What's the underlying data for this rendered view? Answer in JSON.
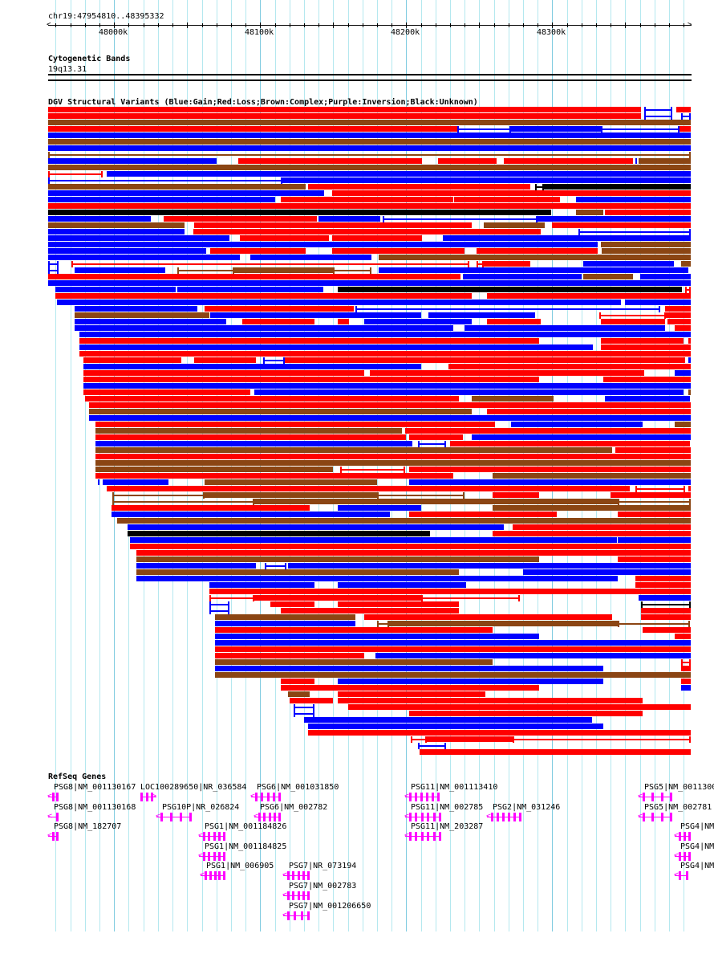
{
  "ruler": {
    "title": "chr19:47954810..48395332",
    "start_kb": 47954.81,
    "end_kb": 48395.332,
    "tick_labels": [
      {
        "kb": 48000,
        "label": "48000k"
      },
      {
        "kb": 48100,
        "label": "48100k"
      },
      {
        "kb": 48200,
        "label": "48200k"
      },
      {
        "kb": 48300,
        "label": "48300k"
      }
    ]
  },
  "cytoband": {
    "title": "Cytogenetic Bands",
    "band": "19q13.31"
  },
  "dgv": {
    "title": "DGV Structural Variants (Blue:Gain;Red:Loss;Brown:Complex;Purple:Inversion;Black:Unknown)",
    "colors": {
      "G": "#0000ff",
      "L": "#ff0000",
      "C": "#8b4513",
      "I": "#800080",
      "U": "#000000"
    },
    "legend_codes": {
      "G": "Gain",
      "L": "Loss",
      "C": "Complex",
      "I": "Inversion",
      "U": "Unknown",
      "t": "thin/linked segment"
    },
    "rows": [
      [
        "L 47955 48361",
        "tG 48363 48382",
        "L 48385 48395"
      ],
      [
        "L 47955 48361",
        "tG 48363 48382",
        "tG 48388 48395"
      ],
      [
        "C 47955 48395"
      ],
      [
        "L 47955 48235",
        "tG 48235 48272",
        "G 48272 48333",
        "tG 48333 48387",
        "L 48387 48395"
      ],
      [
        "G 47955 48395"
      ],
      [
        "C 47955 48395"
      ],
      [
        "G 47955 48395"
      ],
      [
        "tC 47955 48395"
      ],
      [
        "G 47955 48070",
        "L 48085 48211",
        "L 48222 48262",
        "L 48267 48355",
        "G 48357 48358",
        "C 48359 48395"
      ],
      [
        "C 47955 48395"
      ],
      [
        "tL 47955 47992",
        "G 47995 48395"
      ],
      [
        "tG 47955 48115",
        "G 48115 48395"
      ],
      [
        "C 47955 48131",
        "L 48133 48285",
        "tU 48288 48294",
        "U 48294 48395"
      ],
      [
        "G 47955 48144",
        "L 48149 48395"
      ],
      [
        "G 47955 48110",
        "L 48114 48232",
        "L 48233 48305",
        "G 48316 48395"
      ],
      [
        "L 47955 48395"
      ],
      [
        "U 47955 48299",
        "C 48316 48335",
        "L 48336 48395"
      ],
      [
        "G 47955 48025",
        "L 48034 48139",
        "G 48140 48182",
        "tG 48184 48290",
        "G 48290 48395"
      ],
      [
        "C 47955 48048",
        "L 48055 48245",
        "C 48253 48295",
        "L 48300 48395"
      ],
      [
        "G 47955 48048",
        "L 48054 48292",
        "tG 48318 48395"
      ],
      [
        "G 47955 48079",
        "L 48086 48147",
        "L 48149 48211",
        "G 48225 48395"
      ],
      [
        "G 47955 48331",
        "C 48333 48395"
      ],
      [
        "G 47955 48063",
        "L 48066 48131",
        "L 48149 48240",
        "L 48248 48331",
        "C 48334 48395"
      ],
      [
        "G 47955 48086",
        "G 48093 48176",
        "C 48181 48395"
      ],
      [
        "tG 47955 47962",
        "tL 47971 48243",
        "tL 48248 48253",
        "L 48253 48285",
        "G 48321 48383",
        "C 48388 48395"
      ],
      [
        "tG 47955 47962",
        "G 47973 48035",
        "tC 48043 48082",
        "C 48082 48150",
        "tC 48150 48176",
        "G 48181 48393"
      ],
      [
        "L 47955 48237",
        "G 48239 48320",
        "C 48321 48355",
        "G 48360 48395"
      ],
      [
        "G 47955 48395"
      ],
      [
        "G 47960 48042",
        "G 48043 48143",
        "U 48153 48389",
        "tL 48391 48395"
      ],
      [
        "L 47960 48245",
        "L 48255 48395"
      ],
      [
        "G 47961 48347",
        "G 48350 48395"
      ],
      [
        "G 47973 48057",
        "L 48062 48164",
        "tG 48165 48374",
        "L 48377 48395"
      ],
      [
        "C 47973 48065",
        "G 48066 48210",
        "G 48215 48288",
        "tL 48332 48378",
        "L 48378 48395"
      ],
      [
        "G 47973 48077",
        "L 48088 48137",
        "L 48153 48161",
        "G 48171 48245",
        "L 48255 48292",
        "L 48333 48377",
        "L 48379 48395"
      ],
      [
        "G 47973 48232",
        "G 48240 48377",
        "L 48384 48395"
      ],
      [
        "G 47976 48395"
      ],
      [
        "L 47976 48291",
        "L 48333 48390",
        "L 48393 48395"
      ],
      [
        "G 47976 48328",
        "L 48333 48395"
      ],
      [
        "L 47976 48395"
      ],
      [
        "L 47979 48046",
        "L 48055 48097",
        "tG 48102 48117",
        "L 48117 48391",
        "G 48393 48395"
      ],
      [
        "G 47979 48210",
        "L 48229 48395"
      ],
      [
        "L 47979 48171",
        "L 48175 48363",
        "G 48384 48395"
      ],
      [
        "L 47979 48291",
        "L 48335 48395"
      ],
      [
        "G 47979 48395"
      ],
      [
        "L 47979 48093",
        "G 48096 48390",
        "C 48393 48395"
      ],
      [
        "L 47980 48236",
        "C 48245 48301",
        "G 48336 48394"
      ],
      [
        "L 47983 48395"
      ],
      [
        "C 47983 48245",
        "L 48255 48395"
      ],
      [
        "G 47983 48395"
      ],
      [
        "L 47987 48261",
        "G 48272 48362",
        "C 48384 48395"
      ],
      [
        "C 47987 48197",
        "L 48199 48395"
      ],
      [
        "L 47987 48200",
        "L 48202 48239",
        "G 48245 48395"
      ],
      [
        "G 47987 48204",
        "tG 48208 48227",
        "L 48230 48394"
      ],
      [
        "C 47987 48341",
        "L 48343 48395"
      ],
      [
        "L 47987 48395"
      ],
      [
        "C 47987 48395"
      ],
      [
        "C 47987 48150",
        "tL 48155 48199",
        "L 48202 48395"
      ],
      [
        "L 47987 48232",
        "C 48259 48395"
      ],
      [
        "G 47989 47990",
        "G 47992 48037",
        "C 48062 48180",
        "G 48202 48395"
      ],
      [
        "L 47995 48353",
        "tL 48357 48391",
        "L 48393 48395"
      ],
      [
        "tC 47999 48062",
        "C 48062 48180",
        "tC 48180 48240",
        "L 48259 48291",
        "L 48340 48395"
      ],
      [
        "tC 47999 48096",
        "C 48096 48345",
        "tC 48345 48395"
      ],
      [
        "L 47998 48134",
        "G 48153 48210",
        "C 48259 48395"
      ],
      [
        "G 47998 48189",
        "L 48202 48303",
        "L 48345 48395"
      ],
      [
        "C 48002 48395"
      ],
      [
        "G 48009 48267",
        "L 48273 48395"
      ],
      [
        "U 48009 48216",
        "L 48259 48395"
      ],
      [
        "G 48011 48344",
        "G 48345 48395"
      ],
      [
        "L 48011 48395"
      ],
      [
        "L 48015 48395"
      ],
      [
        "C 48015 48291",
        "L 48345 48395"
      ],
      [
        "G 48015 48097",
        "tG 48103 48118",
        "G 48119 48395"
      ],
      [
        "C 48015 48236",
        "G 48280 48395"
      ],
      [
        "G 48015 48345",
        "L 48357 48395"
      ],
      [
        "G 48065 48137",
        "G 48153 48241",
        "L 48357 48395"
      ],
      [
        "L 48065 48395"
      ],
      [
        "tL 48065 48096",
        "L 48096 48210",
        "tL 48210 48278",
        "G 48359 48395"
      ],
      [
        "tG 48065 48079",
        "L 48107 48137",
        "L 48153 48236",
        "tU 48361 48395"
      ],
      [
        "tG 48065 48079",
        "L 48114 48236",
        "L 48361 48395"
      ],
      [
        "C 48069 48165",
        "L 48171 48341",
        "L 48361 48395"
      ],
      [
        "G 48069 48165",
        "tC 48180 48188",
        "C 48188 48345",
        "tC 48345 48394"
      ],
      [
        "L 48069 48259",
        "L 48362 48395"
      ],
      [
        "G 48069 48291",
        "L 48384 48395"
      ],
      [
        "G 48069 48395"
      ],
      [
        "L 48069 48395"
      ],
      [
        "L 48069 48171",
        "G 48179 48395"
      ],
      [
        "C 48069 48259",
        "tL 48388 48395"
      ],
      [
        "G 48069 48335",
        "L 48388 48395"
      ],
      [
        "C 48069 48395"
      ],
      [
        "L 48114 48137",
        "G 48153 48335",
        "L 48388 48395"
      ],
      [
        "L 48114 48291",
        "G 48388 48395"
      ],
      [
        "C 48119 48134",
        "L 48153 48254"
      ],
      [
        "L 48120 48150",
        "L 48153 48362"
      ],
      [
        "tG 48123 48137",
        "L 48160 48395"
      ],
      [
        "tG 48123 48137",
        "L 48202 48362"
      ],
      [
        "G 48130 48327"
      ],
      [
        "G 48133 48335"
      ],
      [
        "L 48133 48395"
      ],
      [
        "tL 48203 48214",
        "L 48214 48273",
        "tL 48273 48395"
      ],
      [
        "tG 48208 48227"
      ],
      [
        "L 48209 48395"
      ]
    ]
  },
  "refseq": {
    "title": "RefSeq Genes",
    "color": "#ff00ff",
    "genes": [
      {
        "label": "PSG8|NM_001130167",
        "start": 47955,
        "end": 47962,
        "strand": "-",
        "lane": 0,
        "exons": 2
      },
      {
        "label": "LOC100289650|NR_036584",
        "start": 48018,
        "end": 48027,
        "strand": "+",
        "lane": 0,
        "exons": 3
      },
      {
        "label": "PSG6|NM_001031850",
        "start": 48094,
        "end": 48114,
        "strand": "-",
        "lane": 0,
        "exons": 5
      },
      {
        "label": "PSG11|NM_001113410",
        "start": 48199,
        "end": 48223,
        "strand": "-",
        "lane": 0,
        "exons": 6
      },
      {
        "label": "PSG5|NM_0011300",
        "start": 48359,
        "end": 48382,
        "strand": "-",
        "lane": 0,
        "exons": 4
      },
      {
        "label": "PSG8|NM_001130168",
        "start": 47955,
        "end": 47962,
        "strand": "-",
        "lane": 1,
        "exons": 1
      },
      {
        "label": "PSG10P|NR_026824",
        "start": 48029,
        "end": 48053,
        "strand": "-",
        "lane": 1,
        "exons": 4
      },
      {
        "label": "PSG6|NM_002782",
        "start": 48096,
        "end": 48114,
        "strand": "-",
        "lane": 1,
        "exons": 5
      },
      {
        "label": "PSG11|NM_002785",
        "start": 48199,
        "end": 48224,
        "strand": "-",
        "lane": 1,
        "exons": 6
      },
      {
        "label": "PSG2|NM_031246",
        "start": 48255,
        "end": 48279,
        "strand": "-",
        "lane": 1,
        "exons": 6
      },
      {
        "label": "PSG5|NM_002781",
        "start": 48359,
        "end": 48382,
        "strand": "-",
        "lane": 1,
        "exons": 4
      },
      {
        "label": "PSG8|NM_182707",
        "start": 47955,
        "end": 47962,
        "strand": "-",
        "lane": 2,
        "exons": 2
      },
      {
        "label": "PSG1|NM_001184826",
        "start": 48058,
        "end": 48076,
        "strand": "-",
        "lane": 2,
        "exons": 5
      },
      {
        "label": "PSG11|NM_203287",
        "start": 48199,
        "end": 48224,
        "strand": "-",
        "lane": 2,
        "exons": 6
      },
      {
        "label": "PSG4|NM",
        "start": 48384,
        "end": 48395,
        "strand": "-",
        "lane": 2,
        "exons": 3
      },
      {
        "label": "PSG1|NM_001184825",
        "start": 48058,
        "end": 48076,
        "strand": "-",
        "lane": 3,
        "exons": 5
      },
      {
        "label": "PSG4|NM",
        "start": 48384,
        "end": 48395,
        "strand": "-",
        "lane": 3,
        "exons": 3
      },
      {
        "label": "PSG1|NM_006905",
        "start": 48059,
        "end": 48076,
        "strand": "-",
        "lane": 4,
        "exons": 5
      },
      {
        "label": "PSG7|NR_073194",
        "start": 48116,
        "end": 48134,
        "strand": "-",
        "lane": 4,
        "exons": 5
      },
      {
        "label": "PSG4|NM",
        "start": 48384,
        "end": 48393,
        "strand": "-",
        "lane": 4,
        "exons": 2
      },
      {
        "label": "PSG7|NM_002783",
        "start": 48116,
        "end": 48134,
        "strand": "-",
        "lane": 5,
        "exons": 5
      },
      {
        "label": "PSG7|NM_001206650",
        "start": 48116,
        "end": 48134,
        "strand": "-",
        "lane": 6,
        "exons": 4
      }
    ]
  }
}
